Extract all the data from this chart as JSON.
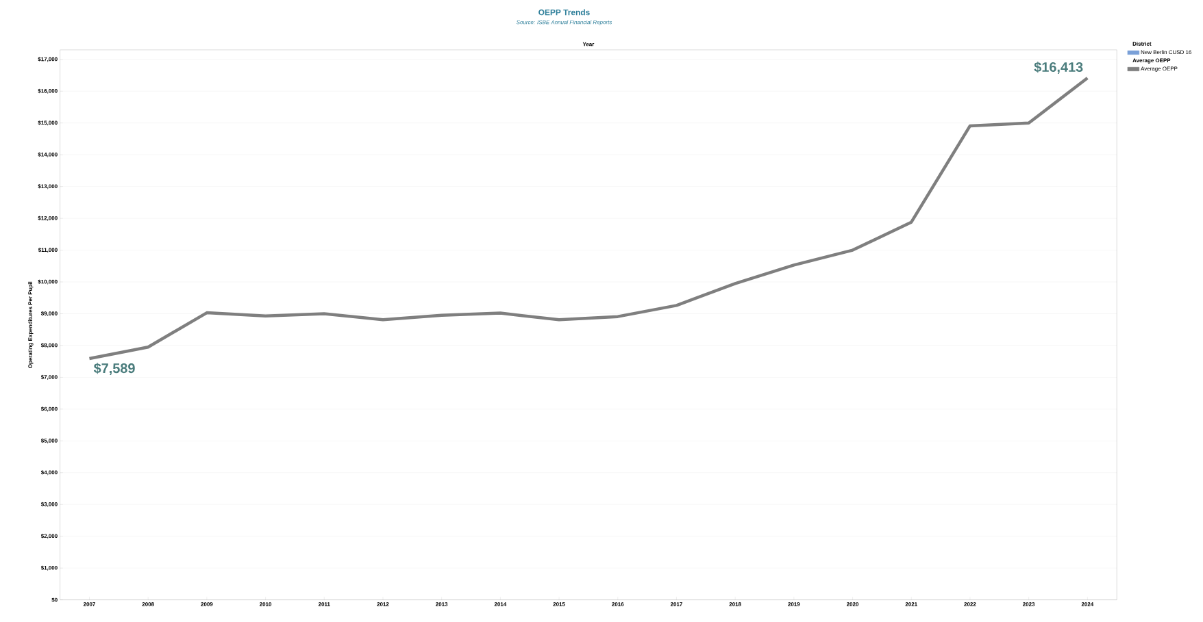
{
  "chart_data": {
    "type": "line",
    "title": "OEPP Trends",
    "subtitle": "Source: ISBE Annual Financial Reports",
    "xlabel": "Year",
    "ylabel": "Operating Expenditures Per Pupil",
    "legend_title": "District",
    "categories": [
      "2007",
      "2008",
      "2009",
      "2010",
      "2011",
      "2012",
      "2013",
      "2014",
      "2015",
      "2016",
      "2017",
      "2018",
      "2019",
      "2020",
      "2021",
      "2022",
      "2023",
      "2024"
    ],
    "series": [
      {
        "name": "New Berlin CUSD 16",
        "color": "#7aa0d8",
        "values": [
          null,
          null,
          null,
          null,
          null,
          null,
          null,
          null,
          null,
          null,
          null,
          null,
          null,
          null,
          null,
          null,
          null,
          null
        ]
      },
      {
        "name": "Average OEPP",
        "color": "#7f7f7f",
        "values": [
          7589,
          7950,
          9030,
          8930,
          9000,
          8810,
          8950,
          9020,
          8810,
          8910,
          9260,
          9950,
          10530,
          11000,
          11880,
          14910,
          15000,
          16413
        ]
      }
    ],
    "annotations": [
      "Average OEPP",
      {
        "text": "$7,589",
        "x": "2007",
        "y": 7589
      },
      {
        "text": "$16,413",
        "x": "2024",
        "y": 16413
      }
    ],
    "ylim": [
      0,
      17300
    ],
    "yticks": [
      {
        "value": 0,
        "label": "$0"
      },
      {
        "value": 1000,
        "label": "$1,000"
      },
      {
        "value": 2000,
        "label": "$2,000"
      },
      {
        "value": 3000,
        "label": "$3,000"
      },
      {
        "value": 4000,
        "label": "$4,000"
      },
      {
        "value": 5000,
        "label": "$5,000"
      },
      {
        "value": 6000,
        "label": "$6,000"
      },
      {
        "value": 7000,
        "label": "$7,000"
      },
      {
        "value": 8000,
        "label": "$8,000"
      },
      {
        "value": 9000,
        "label": "$9,000"
      },
      {
        "value": 10000,
        "label": "$10,000"
      },
      {
        "value": 11000,
        "label": "$11,000"
      },
      {
        "value": 12000,
        "label": "$12,000"
      },
      {
        "value": 13000,
        "label": "$13,000"
      },
      {
        "value": 14000,
        "label": "$14,000"
      },
      {
        "value": 15000,
        "label": "$15,000"
      },
      {
        "value": 16000,
        "label": "$16,000"
      },
      {
        "value": 17000,
        "label": "$17,000"
      }
    ],
    "grid": "y",
    "legend": "top right",
    "marker": "none",
    "line_style": "solid"
  }
}
